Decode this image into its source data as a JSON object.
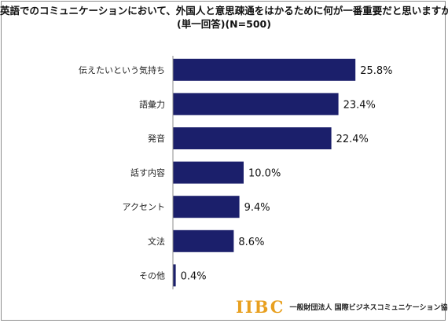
{
  "title_line1": "英語でのコミュニケーションにおいて、外国人と意思疎通をはかるために何が一番重要だと思いますか。",
  "title_line2": "(単一回答)(N=500)",
  "footer": {
    "logo_text": "IIBC",
    "org_name": "一般財団法人 国際ビジネスコミュニケーション協会"
  },
  "chart_data": {
    "type": "bar",
    "orientation": "horizontal",
    "categories": [
      "伝えたいという気持ち",
      "語彙力",
      "発音",
      "話す内容",
      "アクセント",
      "文法",
      "その他"
    ],
    "values": [
      25.8,
      23.4,
      22.4,
      10.0,
      9.4,
      8.6,
      0.4
    ],
    "value_labels": [
      "25.8%",
      "23.4%",
      "22.4%",
      "10.0%",
      "9.4%",
      "8.6%",
      "0.4%"
    ],
    "xlim": [
      0,
      30
    ],
    "bar_color": "#1b1f6b",
    "grid": false,
    "legend": "none"
  }
}
